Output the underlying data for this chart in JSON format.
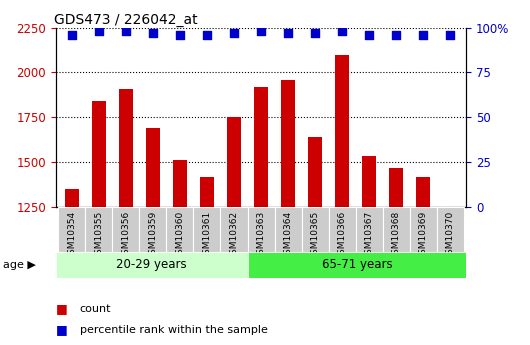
{
  "title": "GDS473 / 226042_at",
  "samples": [
    "GSM10354",
    "GSM10355",
    "GSM10356",
    "GSM10359",
    "GSM10360",
    "GSM10361",
    "GSM10362",
    "GSM10363",
    "GSM10364",
    "GSM10365",
    "GSM10366",
    "GSM10367",
    "GSM10368",
    "GSM10369",
    "GSM10370"
  ],
  "counts": [
    1350,
    1840,
    1910,
    1690,
    1510,
    1415,
    1750,
    1920,
    1960,
    1640,
    2100,
    1535,
    1470,
    1415,
    1250
  ],
  "percentiles": [
    96,
    98,
    98,
    97,
    96,
    96,
    97,
    98,
    97,
    97,
    98,
    96,
    96,
    96,
    96
  ],
  "group1_count": 7,
  "group2_count": 8,
  "group1_label": "20-29 years",
  "group2_label": "65-71 years",
  "ylim_left": [
    1250,
    2250
  ],
  "ylim_right": [
    0,
    100
  ],
  "yticks_left": [
    1250,
    1500,
    1750,
    2000,
    2250
  ],
  "yticks_right": [
    0,
    25,
    50,
    75,
    100
  ],
  "bar_color": "#cc0000",
  "dot_color": "#0000cc",
  "group1_bg": "#ccffcc",
  "group2_bg": "#44ee44",
  "tick_label_bg": "#cccccc",
  "dot_size": 30,
  "bar_width": 0.5
}
